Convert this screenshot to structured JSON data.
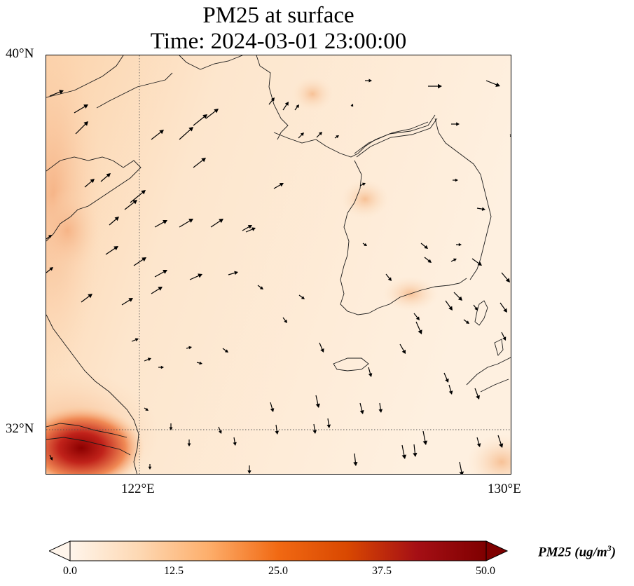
{
  "title": {
    "line1": "PM25 at surface",
    "line2": "Time: 2024-03-01 23:00:00"
  },
  "map": {
    "lat_labels": [
      "40°N",
      "32°N"
    ],
    "lon_labels": [
      "122°E",
      "130°E"
    ]
  },
  "colorbar": {
    "ticks": [
      "0.0",
      "12.5",
      "25.0",
      "37.5",
      "50.0"
    ],
    "label_main": "PM25 (ug/m",
    "label_sup": "3",
    "label_end": ")",
    "colors": [
      "#fff5eb",
      "#fdd8b3",
      "#fdae6b",
      "#f16913",
      "#d94801",
      "#a50f15",
      "#7f0000"
    ]
  },
  "field": {
    "background": "#fde9d2",
    "hotspot_color": "#b30000",
    "secondary_color": "#f6b487"
  }
}
